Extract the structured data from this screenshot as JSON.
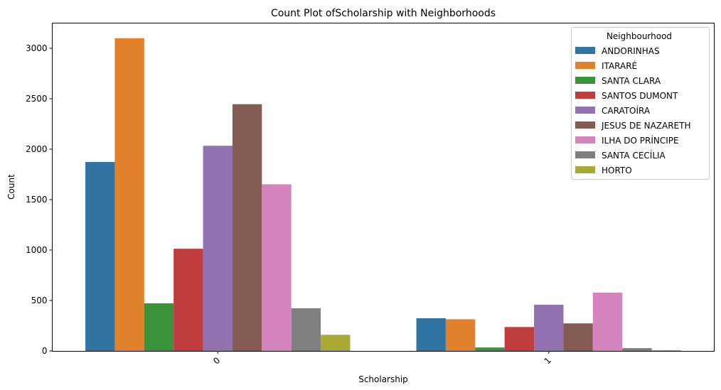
{
  "chart_data": {
    "type": "bar",
    "title": "Count Plot ofScholarship with Neighborhoods",
    "xlabel": "Scholarship",
    "ylabel": "Count",
    "categories": [
      "0",
      "1"
    ],
    "ylim": [
      0,
      3250
    ],
    "yticks": [
      0,
      500,
      1000,
      1500,
      2000,
      2500,
      3000
    ],
    "grid": false,
    "legend": {
      "title": "Neighbourhood",
      "placement": "top-right"
    },
    "series": [
      {
        "name": "ANDORINHAS",
        "color": "#3274a1",
        "values": [
          1873,
          324
        ]
      },
      {
        "name": "ITARARÉ",
        "color": "#e1812c",
        "values": [
          3100,
          314
        ]
      },
      {
        "name": "SANTA CLARA",
        "color": "#3a923a",
        "values": [
          472,
          34
        ]
      },
      {
        "name": "SANTOS DUMONT",
        "color": "#c03d3e",
        "values": [
          1013,
          237
        ]
      },
      {
        "name": "CARATOÍRA",
        "color": "#9372b2",
        "values": [
          2034,
          458
        ]
      },
      {
        "name": "JESUS DE NAZARETH",
        "color": "#845b53",
        "values": [
          2446,
          273
        ]
      },
      {
        "name": "ILHA DO PRÍNCIPE",
        "color": "#d684bd",
        "values": [
          1652,
          578
        ]
      },
      {
        "name": "SANTA CECÍLIA",
        "color": "#7f7f7f",
        "values": [
          423,
          28
        ]
      },
      {
        "name": "HORTO",
        "color": "#a9aa35",
        "values": [
          160,
          8
        ]
      }
    ]
  }
}
